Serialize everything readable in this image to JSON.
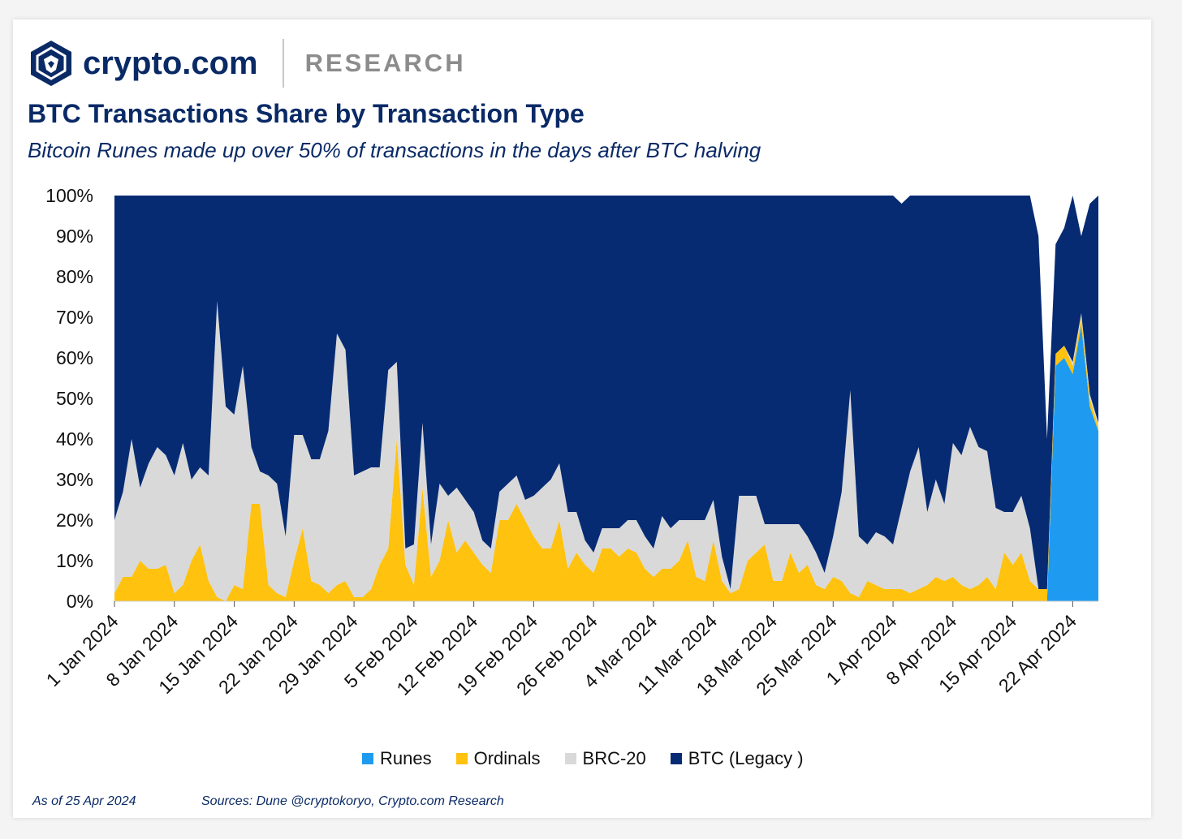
{
  "brand": {
    "name": "crypto.com",
    "section": "RESEARCH"
  },
  "colors": {
    "runes": "#1e9bf0",
    "ordinals": "#ffc20e",
    "brc20": "#d9d9d9",
    "btc_legacy": "#062b73",
    "brand": "#0a2a66"
  },
  "chart_data": {
    "type": "area",
    "stacked": true,
    "title": "BTC Transactions Share by Transaction Type",
    "subtitle": "Bitcoin Runes made up over 50% of transactions in the days after BTC halving",
    "xlabel": "",
    "ylabel": "",
    "ylim": [
      0,
      100
    ],
    "y_ticks": [
      "0%",
      "10%",
      "20%",
      "30%",
      "40%",
      "50%",
      "60%",
      "70%",
      "80%",
      "90%",
      "100%"
    ],
    "x_tick_labels": [
      "1 Jan 2024",
      "8 Jan 2024",
      "15 Jan 2024",
      "22 Jan 2024",
      "29 Jan 2024",
      "5 Feb 2024",
      "12 Feb 2024",
      "19 Feb 2024",
      "26 Feb 2024",
      "4 Mar 2024",
      "11 Mar 2024",
      "18 Mar 2024",
      "25 Mar 2024",
      "1 Apr 2024",
      "8 Apr 2024",
      "15 Apr 2024",
      "22 Apr 2024"
    ],
    "x_start": "1 Jan 2024",
    "x_end": "25 Apr 2024",
    "days": 116,
    "series": [
      {
        "name": "Runes",
        "values": [
          0,
          0,
          0,
          0,
          0,
          0,
          0,
          0,
          0,
          0,
          0,
          0,
          0,
          0,
          0,
          0,
          0,
          0,
          0,
          0,
          0,
          0,
          0,
          0,
          0,
          0,
          0,
          0,
          0,
          0,
          0,
          0,
          0,
          0,
          0,
          0,
          0,
          0,
          0,
          0,
          0,
          0,
          0,
          0,
          0,
          0,
          0,
          0,
          0,
          0,
          0,
          0,
          0,
          0,
          0,
          0,
          0,
          0,
          0,
          0,
          0,
          0,
          0,
          0,
          0,
          0,
          0,
          0,
          0,
          0,
          0,
          0,
          0,
          0,
          0,
          0,
          0,
          0,
          0,
          0,
          0,
          0,
          0,
          0,
          0,
          0,
          0,
          0,
          0,
          0,
          0,
          0,
          0,
          0,
          0,
          0,
          0,
          0,
          0,
          0,
          0,
          0,
          0,
          0,
          0,
          0,
          0,
          0,
          0,
          0,
          58,
          60,
          56,
          68,
          48,
          42
        ]
      },
      {
        "name": "Ordinals",
        "values": [
          2,
          6,
          6,
          10,
          8,
          8,
          9,
          2,
          4,
          10,
          14,
          5,
          1,
          0,
          4,
          3,
          24,
          24,
          4,
          2,
          1,
          10,
          18,
          5,
          4,
          2,
          4,
          5,
          1,
          1,
          3,
          9,
          13,
          40,
          9,
          4,
          28,
          6,
          10,
          20,
          12,
          15,
          12,
          9,
          7,
          20,
          20,
          24,
          20,
          16,
          13,
          13,
          20,
          8,
          12,
          9,
          7,
          13,
          13,
          11,
          13,
          12,
          8,
          6,
          8,
          8,
          10,
          15,
          6,
          5,
          15,
          5,
          2,
          3,
          10,
          12,
          14,
          5,
          5,
          12,
          7,
          9,
          4,
          3,
          6,
          5,
          2,
          1,
          5,
          4,
          3,
          3,
          3,
          2,
          3,
          4,
          6,
          5,
          6,
          4,
          3,
          4,
          6,
          3,
          12,
          9,
          12,
          5,
          3,
          3,
          3,
          3,
          2,
          2,
          2,
          1
        ]
      },
      {
        "name": "BRC-20",
        "values": [
          18,
          21,
          34,
          18,
          26,
          30,
          27,
          29,
          35,
          20,
          19,
          26,
          73,
          48,
          42,
          55,
          14,
          8,
          27,
          27,
          15,
          31,
          23,
          30,
          31,
          40,
          62,
          57,
          30,
          31,
          30,
          24,
          44,
          19,
          4,
          10,
          16,
          8,
          19,
          6,
          16,
          10,
          10,
          6,
          6,
          7,
          9,
          7,
          5,
          10,
          15,
          17,
          14,
          14,
          10,
          6,
          5,
          5,
          5,
          7,
          7,
          8,
          8,
          7,
          13,
          10,
          10,
          5,
          14,
          15,
          10,
          6,
          1,
          23,
          16,
          14,
          5,
          14,
          14,
          7,
          12,
          7,
          8,
          4,
          10,
          22,
          50,
          15,
          9,
          13,
          13,
          11,
          20,
          30,
          35,
          18,
          24,
          19,
          33,
          32,
          40,
          34,
          31,
          20,
          10,
          13,
          14,
          13,
          0,
          0,
          0,
          0,
          1,
          1,
          1,
          1
        ]
      },
      {
        "name": "BTC (Legacy )",
        "values": [
          80,
          73,
          60,
          72,
          66,
          62,
          64,
          69,
          61,
          70,
          67,
          69,
          26,
          52,
          54,
          42,
          62,
          68,
          69,
          71,
          84,
          59,
          59,
          65,
          65,
          58,
          34,
          38,
          69,
          68,
          67,
          67,
          43,
          41,
          87,
          86,
          56,
          86,
          71,
          74,
          72,
          75,
          78,
          85,
          87,
          73,
          71,
          69,
          75,
          74,
          72,
          70,
          66,
          78,
          78,
          85,
          88,
          82,
          82,
          82,
          80,
          80,
          84,
          87,
          79,
          82,
          80,
          80,
          80,
          80,
          75,
          89,
          97,
          74,
          74,
          74,
          81,
          81,
          81,
          81,
          81,
          84,
          88,
          93,
          84,
          73,
          48,
          84,
          86,
          83,
          84,
          86,
          75,
          68,
          62,
          78,
          70,
          76,
          61,
          64,
          57,
          62,
          63,
          77,
          78,
          78,
          74,
          82,
          87,
          37,
          27,
          29,
          42,
          19,
          47,
          56
        ]
      }
    ]
  },
  "legend": {
    "items": [
      "Runes",
      "Ordinals",
      "BRC-20",
      "BTC (Legacy )"
    ]
  },
  "footer": {
    "as_of": "As of 25 Apr 2024",
    "sources": "Sources: Dune @cryptokoryo, Crypto.com Research"
  }
}
